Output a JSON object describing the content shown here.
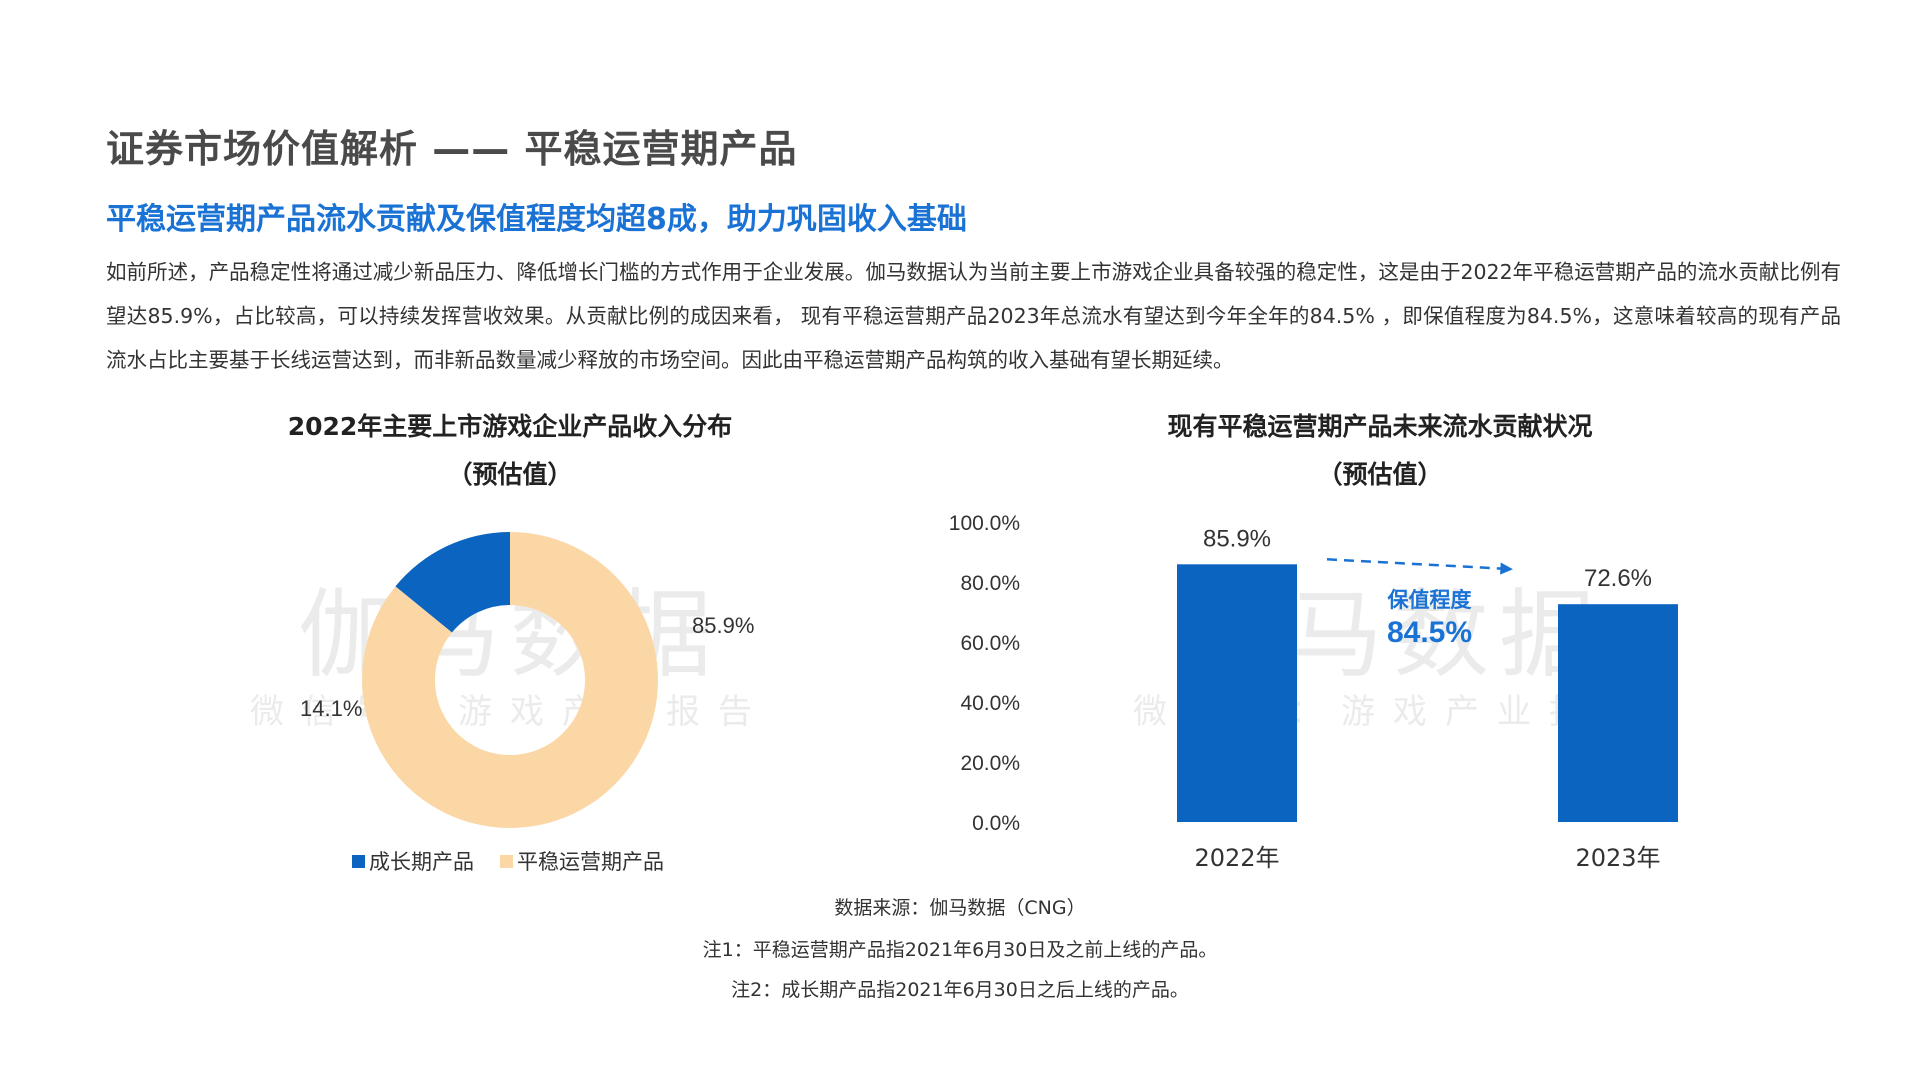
{
  "page": {
    "title": "证券市场价值解析 —— 平稳运营期产品",
    "subtitle": "平稳运营期产品流水贡献及保值程度均超8成，助力巩固收入基础",
    "intro": "如前所述，产品稳定性将通过减少新品压力、降低增长门槛的方式作用于企业发展。伽马数据认为当前主要上市游戏企业具备较强的稳定性，这是由于2022年平稳运营期产品的流水贡献比例有望达85.9%，占比较高，可以持续发挥营收效果。从贡献比例的成因来看， 现有平稳运营期产品2023年总流水有望达到今年全年的84.5% ，即保值程度为84.5%，这意味着较高的现有产品流水占比主要基于长线运营达到，而非新品数量减少释放的市场空间。因此由平稳运营期产品构筑的收入基础有望长期延续。"
  },
  "watermark": {
    "main": "伽马数据",
    "sub": "微信号：游戏产业报告"
  },
  "chart_data": [
    {
      "type": "pie",
      "style": "donut",
      "title": "2022年主要上市游戏企业产品收入分布",
      "title_line2": "（预估值）",
      "categories": [
        "成长期产品",
        "平稳运营期产品"
      ],
      "values": [
        14.1,
        85.9
      ],
      "value_labels": [
        "14.1%",
        "85.9%"
      ],
      "colors": [
        "#0b64c0",
        "#fcd7a6"
      ],
      "legend": "bottom"
    },
    {
      "type": "bar",
      "title": "现有平稳运营期产品未来流水贡献状况",
      "title_line2": "（预估值）",
      "categories": [
        "2022年",
        "2023年"
      ],
      "values": [
        85.9,
        72.6
      ],
      "value_labels": [
        "85.9%",
        "72.6%"
      ],
      "ylim": [
        0,
        100
      ],
      "yticks": [
        "0.0%",
        "20.0%",
        "40.0%",
        "60.0%",
        "80.0%",
        "100.0%"
      ],
      "grid": false,
      "color": "#0b64c0",
      "annotation": {
        "label": "保值程度",
        "value": "84.5%",
        "color": "#1a73d4"
      }
    }
  ],
  "footnotes": {
    "source": "数据来源：伽马数据（CNG）",
    "note1": "注1：平稳运营期产品指2021年6月30日及之前上线的产品。",
    "note2": "注2：成长期产品指2021年6月30日之后上线的产品。"
  }
}
